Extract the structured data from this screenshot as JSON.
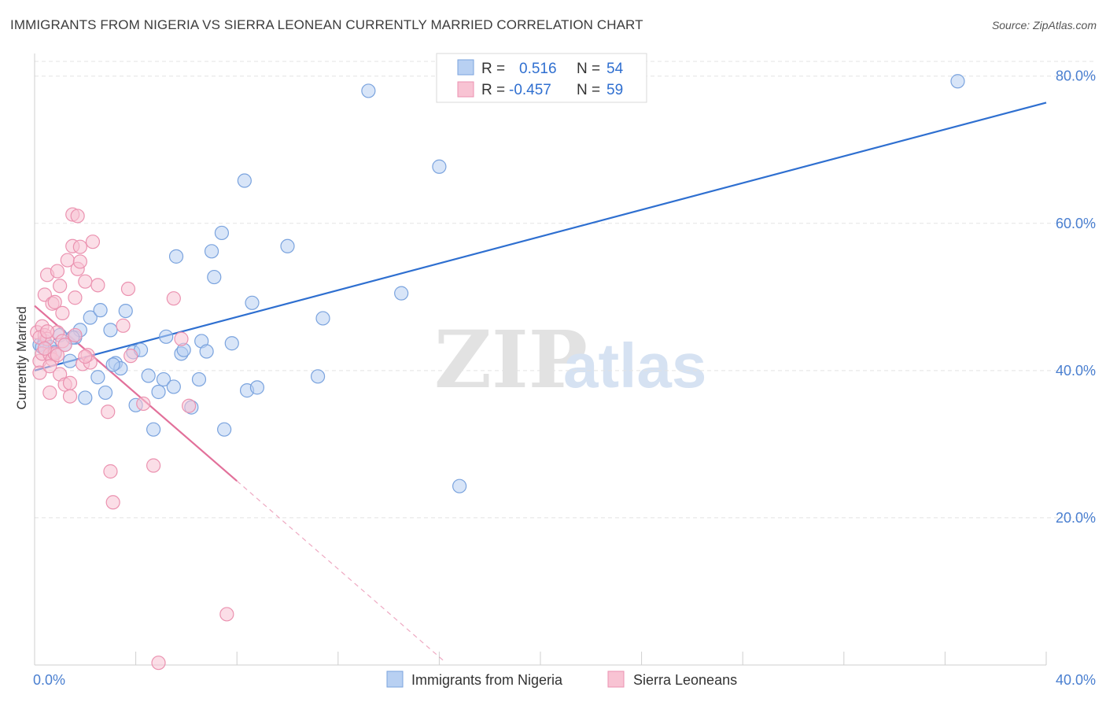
{
  "title": "IMMIGRANTS FROM NIGERIA VS SIERRA LEONEAN CURRENTLY MARRIED CORRELATION CHART",
  "source": "Source: ZipAtlas.com",
  "watermark": {
    "zip": "ZIP",
    "atlas": "atlas"
  },
  "colors": {
    "blue_fill": "#b8d0f2",
    "blue_stroke": "#7aa3de",
    "blue_line": "#2e6fd0",
    "pink_fill": "#f8c3d3",
    "pink_stroke": "#eb92b0",
    "pink_line": "#e2709a",
    "grid": "#e3e3e3",
    "tick_text": "#4a7fd0"
  },
  "legend": {
    "rows": [
      {
        "r_label": "R =",
        "r_value": "0.516",
        "n_label": "N =",
        "n_value": "54"
      },
      {
        "r_label": "R =",
        "r_value": "-0.457",
        "n_label": "N =",
        "n_value": "59"
      }
    ]
  },
  "chart_data": {
    "type": "scatter",
    "xlabel": "",
    "ylabel": "Currently Married",
    "xlim": [
      0,
      40
    ],
    "ylim": [
      0,
      82
    ],
    "x_tick_labels": [
      "0.0%",
      "40.0%"
    ],
    "y_ticks": [
      20,
      40,
      60,
      80
    ],
    "y_tick_labels": [
      "20.0%",
      "40.0%",
      "60.0%",
      "80.0%"
    ],
    "grid": true,
    "series": [
      {
        "name": "Immigrants from Nigeria",
        "color": "blue",
        "trend": {
          "x": [
            0,
            40
          ],
          "y": [
            40.0,
            76.4
          ],
          "dashed_to": null
        },
        "points": [
          [
            0.2,
            43.5
          ],
          [
            0.4,
            44.0
          ],
          [
            0.6,
            43.2
          ],
          [
            0.8,
            42.5
          ],
          [
            1.0,
            44.8
          ],
          [
            1.2,
            43.5
          ],
          [
            1.4,
            41.3
          ],
          [
            1.6,
            44.5
          ],
          [
            1.8,
            45.5
          ],
          [
            2.0,
            36.3
          ],
          [
            2.2,
            47.2
          ],
          [
            2.5,
            39.1
          ],
          [
            2.6,
            48.2
          ],
          [
            2.8,
            37.0
          ],
          [
            3.0,
            45.5
          ],
          [
            3.2,
            41.0
          ],
          [
            3.4,
            40.3
          ],
          [
            3.6,
            48.1
          ],
          [
            3.9,
            42.5
          ],
          [
            4.0,
            35.3
          ],
          [
            4.2,
            42.8
          ],
          [
            4.5,
            39.3
          ],
          [
            4.7,
            32.0
          ],
          [
            4.9,
            37.1
          ],
          [
            5.1,
            38.8
          ],
          [
            5.2,
            44.6
          ],
          [
            5.5,
            37.8
          ],
          [
            5.6,
            55.5
          ],
          [
            5.8,
            42.3
          ],
          [
            5.9,
            42.8
          ],
          [
            6.2,
            35.0
          ],
          [
            6.5,
            38.8
          ],
          [
            6.6,
            44.0
          ],
          [
            6.8,
            42.6
          ],
          [
            7.0,
            56.2
          ],
          [
            7.1,
            52.7
          ],
          [
            7.4,
            58.7
          ],
          [
            7.5,
            32.0
          ],
          [
            7.8,
            43.7
          ],
          [
            8.3,
            65.8
          ],
          [
            8.4,
            37.3
          ],
          [
            8.6,
            49.2
          ],
          [
            8.8,
            37.7
          ],
          [
            10.0,
            56.9
          ],
          [
            11.2,
            39.2
          ],
          [
            11.4,
            47.1
          ],
          [
            13.2,
            78.0
          ],
          [
            14.5,
            50.5
          ],
          [
            16.0,
            67.7
          ],
          [
            16.8,
            24.3
          ],
          [
            36.5,
            79.3
          ],
          [
            0.3,
            43.2
          ],
          [
            1.5,
            44.5
          ],
          [
            3.1,
            40.8
          ]
        ]
      },
      {
        "name": "Sierra Leoneans",
        "color": "pink",
        "trend": {
          "x": [
            0,
            8.0
          ],
          "y": [
            48.8,
            25.0
          ],
          "dashed_to": [
            16.2,
            0.5
          ]
        },
        "points": [
          [
            0.1,
            45.2
          ],
          [
            0.2,
            41.3
          ],
          [
            0.2,
            39.7
          ],
          [
            0.3,
            46.0
          ],
          [
            0.3,
            42.3
          ],
          [
            0.4,
            50.3
          ],
          [
            0.4,
            44.8
          ],
          [
            0.5,
            53.0
          ],
          [
            0.5,
            44.3
          ],
          [
            0.6,
            42.2
          ],
          [
            0.6,
            37.0
          ],
          [
            0.7,
            49.1
          ],
          [
            0.7,
            41.5
          ],
          [
            0.8,
            49.3
          ],
          [
            0.8,
            42.3
          ],
          [
            0.9,
            53.5
          ],
          [
            0.9,
            45.2
          ],
          [
            1.0,
            51.5
          ],
          [
            1.0,
            39.5
          ],
          [
            1.1,
            47.8
          ],
          [
            1.1,
            44.0
          ],
          [
            1.2,
            38.1
          ],
          [
            1.3,
            55.0
          ],
          [
            1.4,
            38.3
          ],
          [
            1.4,
            36.5
          ],
          [
            1.5,
            56.9
          ],
          [
            1.5,
            61.2
          ],
          [
            1.6,
            49.9
          ],
          [
            1.6,
            44.8
          ],
          [
            1.7,
            53.8
          ],
          [
            1.7,
            61.0
          ],
          [
            1.8,
            54.8
          ],
          [
            1.8,
            56.8
          ],
          [
            1.9,
            40.9
          ],
          [
            2.0,
            52.1
          ],
          [
            2.1,
            42.1
          ],
          [
            2.2,
            41.1
          ],
          [
            2.3,
            57.5
          ],
          [
            2.5,
            51.6
          ],
          [
            2.9,
            34.4
          ],
          [
            3.0,
            26.3
          ],
          [
            3.1,
            22.1
          ],
          [
            3.5,
            46.1
          ],
          [
            3.7,
            51.1
          ],
          [
            3.8,
            42.0
          ],
          [
            4.3,
            35.5
          ],
          [
            4.7,
            27.1
          ],
          [
            4.9,
            0.3
          ],
          [
            5.5,
            49.8
          ],
          [
            5.8,
            44.3
          ],
          [
            6.1,
            35.2
          ],
          [
            7.6,
            6.9
          ],
          [
            0.2,
            44.5
          ],
          [
            0.4,
            43.0
          ],
          [
            0.5,
            45.3
          ],
          [
            0.6,
            40.6
          ],
          [
            0.9,
            42.1
          ],
          [
            1.2,
            43.5
          ],
          [
            2.0,
            41.9
          ]
        ]
      }
    ]
  },
  "bottom_legend": [
    {
      "label": "Immigrants from Nigeria",
      "color": "blue"
    },
    {
      "label": "Sierra Leoneans",
      "color": "pink"
    }
  ]
}
